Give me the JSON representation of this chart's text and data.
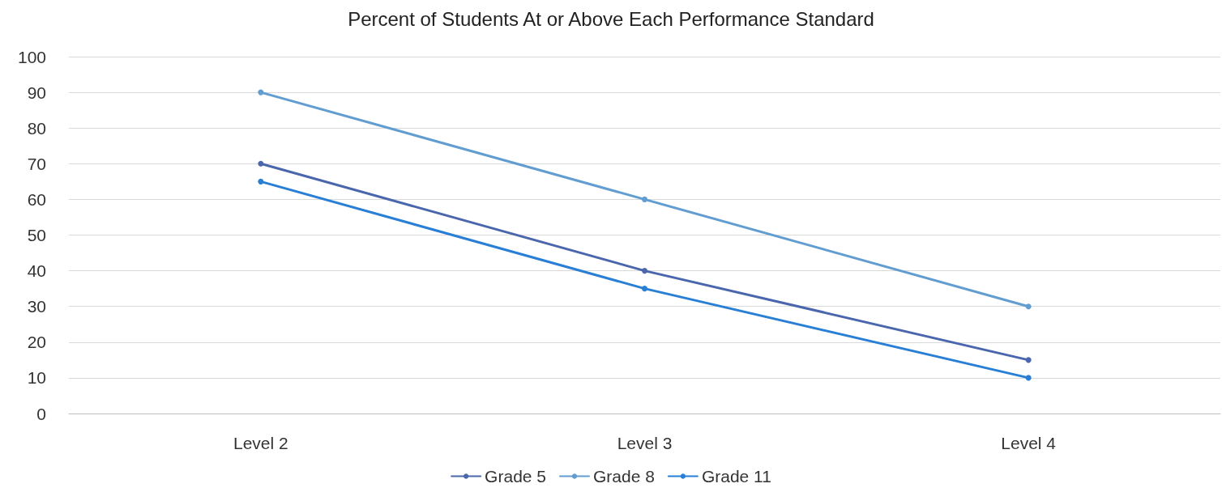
{
  "chart_data": {
    "type": "line",
    "title": "Percent of Students At or Above Each Performance Standard",
    "categories": [
      "Level 2",
      "Level 3",
      "Level 4"
    ],
    "series": [
      {
        "name": "Grade 5",
        "color": "#4a66ac",
        "values": [
          70,
          40,
          15
        ]
      },
      {
        "name": "Grade 8",
        "color": "#629dd1",
        "values": [
          90,
          60,
          30
        ]
      },
      {
        "name": "Grade 11",
        "color": "#297fd5",
        "values": [
          65,
          35,
          10
        ]
      }
    ],
    "ylim": [
      0,
      100
    ],
    "yticks": [
      0,
      10,
      20,
      30,
      40,
      50,
      60,
      70,
      80,
      90,
      100
    ],
    "grid": "y",
    "legend": "bottom",
    "marker": "circle",
    "line_style": "solid"
  }
}
